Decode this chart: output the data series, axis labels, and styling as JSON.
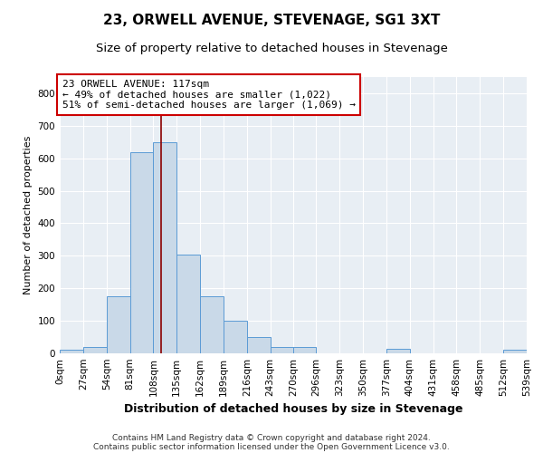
{
  "title": "23, ORWELL AVENUE, STEVENAGE, SG1 3XT",
  "subtitle": "Size of property relative to detached houses in Stevenage",
  "xlabel": "Distribution of detached houses by size in Stevenage",
  "ylabel": "Number of detached properties",
  "bar_color": "#c9d9e8",
  "bar_edge_color": "#5b9bd5",
  "bg_color": "#e8eef4",
  "grid_color": "#ffffff",
  "vline_value": 117,
  "vline_color": "#8b0000",
  "annotation_text": "23 ORWELL AVENUE: 117sqm\n← 49% of detached houses are smaller (1,022)\n51% of semi-detached houses are larger (1,069) →",
  "annotation_box_color": "#ffffff",
  "annotation_box_edge": "#cc0000",
  "bin_edges": [
    0,
    27,
    54,
    81,
    108,
    135,
    162,
    189,
    216,
    243,
    270,
    296,
    323,
    350,
    377,
    404,
    431,
    458,
    485,
    512,
    539
  ],
  "bin_counts": [
    10,
    20,
    175,
    620,
    650,
    305,
    175,
    100,
    50,
    20,
    20,
    0,
    0,
    0,
    15,
    0,
    0,
    0,
    0,
    10
  ],
  "ylim": [
    0,
    850
  ],
  "yticks": [
    0,
    100,
    200,
    300,
    400,
    500,
    600,
    700,
    800
  ],
  "footnote1": "Contains HM Land Registry data © Crown copyright and database right 2024.",
  "footnote2": "Contains public sector information licensed under the Open Government Licence v3.0.",
  "title_fontsize": 11,
  "subtitle_fontsize": 9.5,
  "xlabel_fontsize": 9,
  "ylabel_fontsize": 8,
  "tick_fontsize": 7.5,
  "annot_fontsize": 8
}
